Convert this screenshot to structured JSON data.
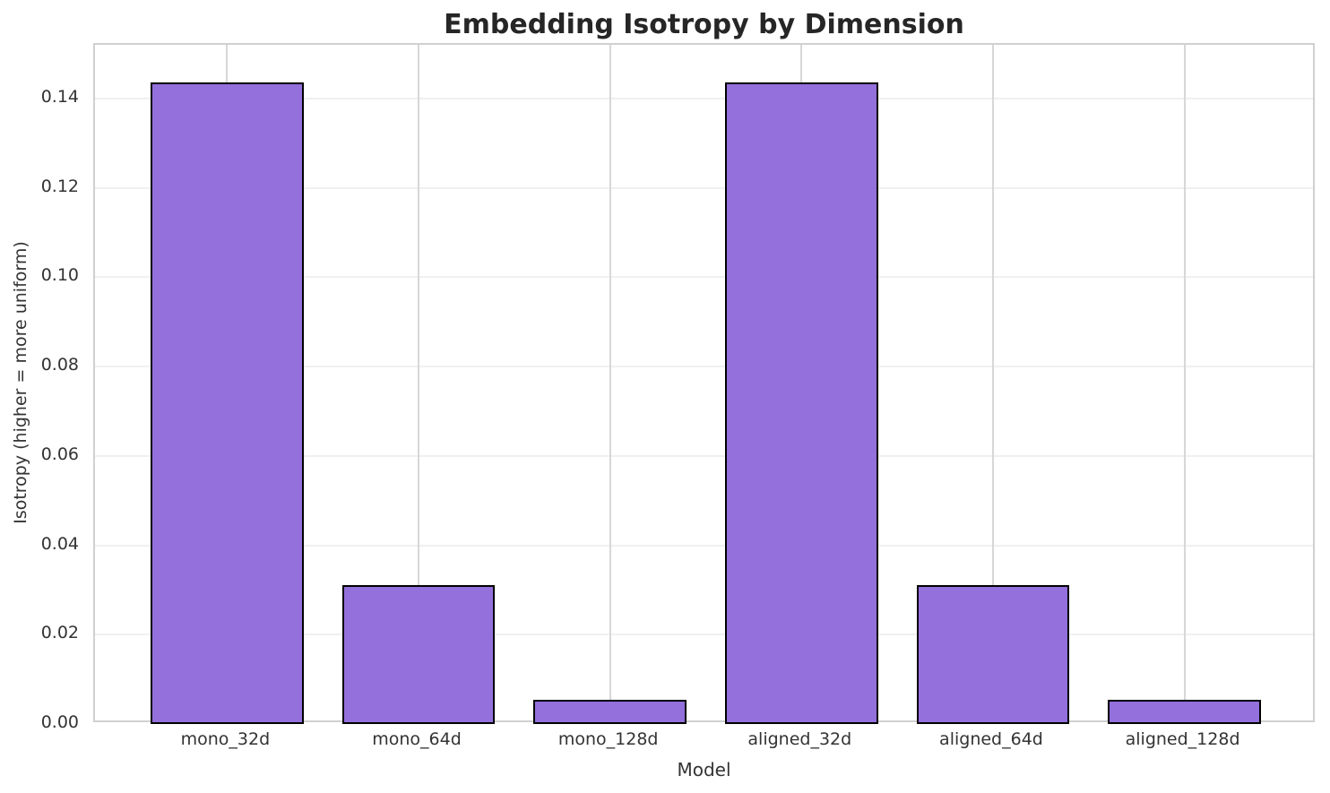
{
  "chart_data": {
    "type": "bar",
    "title": "Embedding Isotropy by Dimension",
    "xlabel": "Model",
    "ylabel": "Isotropy (higher = more uniform)",
    "categories": [
      "mono_32d",
      "mono_64d",
      "mono_128d",
      "aligned_32d",
      "aligned_64d",
      "aligned_128d"
    ],
    "values": [
      0.1436,
      0.031,
      0.0055,
      0.1436,
      0.031,
      0.0055
    ],
    "ytick_labels": [
      "0.00",
      "0.02",
      "0.04",
      "0.06",
      "0.08",
      "0.10",
      "0.12",
      "0.14"
    ],
    "ylim": [
      0,
      0.152
    ],
    "grid": true,
    "legend": null,
    "bar_color": "#9370DB",
    "bar_edge_color": "#000000",
    "hgrid_color": "#f0f0f0",
    "vgrid_color": "#d7d7d7",
    "spine_color": "#d0d0d0",
    "text_color": "#333333"
  }
}
